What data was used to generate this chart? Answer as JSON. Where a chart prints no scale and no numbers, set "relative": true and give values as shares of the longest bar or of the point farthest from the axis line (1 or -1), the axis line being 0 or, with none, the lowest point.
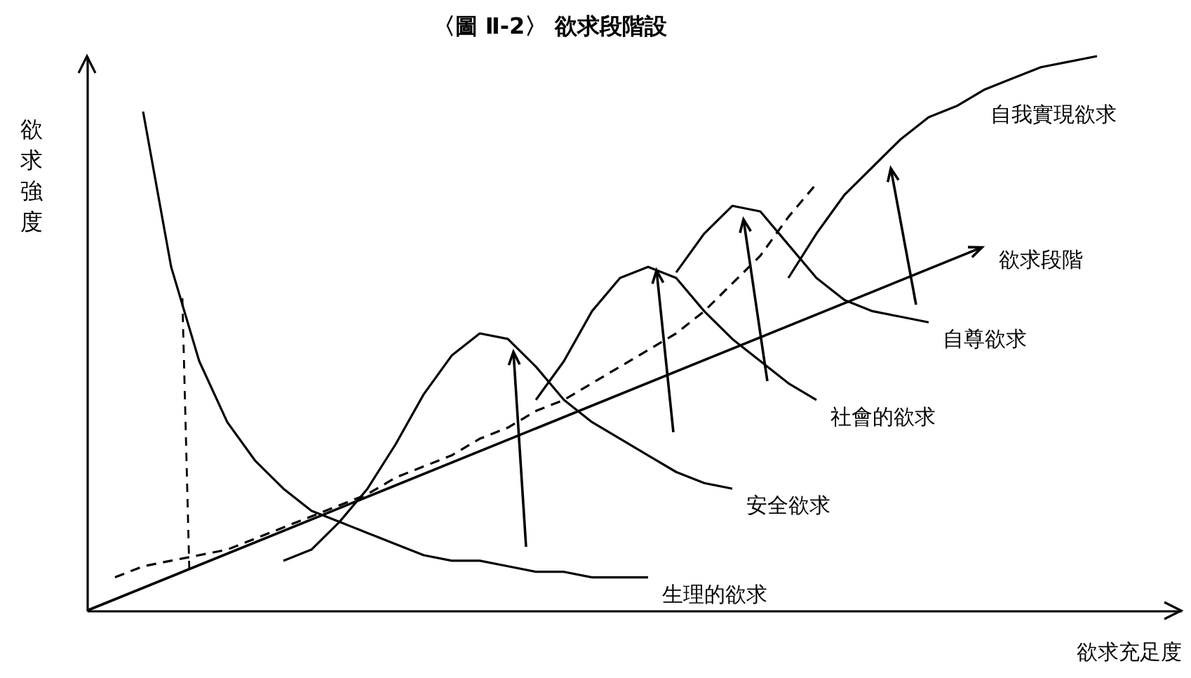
{
  "chart_data": {
    "type": "line",
    "title": "〈圖 Ⅱ-2〉 欲求段階設",
    "xlabel": "欲求充足度",
    "ylabel": "欲求強度",
    "relative": true,
    "grid": false,
    "marker": "none",
    "tick_labels": false,
    "categories": [
      null,
      null,
      null,
      null,
      null,
      null,
      null,
      null,
      null,
      null,
      null,
      null,
      null,
      null,
      null,
      null,
      null,
      null,
      null,
      null,
      null,
      null,
      null,
      null,
      null,
      null,
      null,
      null,
      null,
      null,
      null,
      null,
      null,
      null,
      null,
      null,
      null,
      null,
      null,
      null
    ],
    "series": [
      {
        "name": "生理的欲求",
        "color": "#000000",
        "values": [
          null,
          null,
          0.9,
          0.62,
          0.45,
          0.34,
          0.27,
          0.22,
          0.18,
          0.16,
          0.14,
          0.12,
          0.1,
          0.09,
          0.09,
          0.08,
          0.07,
          0.07,
          0.06,
          0.06,
          0.06,
          null,
          null,
          null,
          null,
          null,
          null,
          null,
          null,
          null,
          null,
          null,
          null,
          null,
          null,
          null,
          null,
          null,
          null,
          null
        ]
      },
      {
        "name": "安全欲求",
        "color": "#000000",
        "values": [
          null,
          null,
          null,
          null,
          null,
          null,
          null,
          0.09,
          0.11,
          0.16,
          0.22,
          0.3,
          0.39,
          0.46,
          0.5,
          0.49,
          0.44,
          0.38,
          0.34,
          0.31,
          0.28,
          0.25,
          0.23,
          0.22,
          null,
          null,
          null,
          null,
          null,
          null,
          null,
          null,
          null,
          null,
          null,
          null,
          null,
          null,
          null,
          null
        ]
      },
      {
        "name": "社會的欲求",
        "color": "#000000",
        "values": [
          null,
          null,
          null,
          null,
          null,
          null,
          null,
          null,
          null,
          null,
          null,
          null,
          null,
          null,
          null,
          null,
          0.38,
          0.45,
          0.54,
          0.6,
          0.62,
          0.6,
          0.54,
          0.49,
          0.45,
          0.41,
          0.38,
          null,
          null,
          null,
          null,
          null,
          null,
          null,
          null,
          null,
          null,
          null,
          null,
          null
        ]
      },
      {
        "name": "自尊欲求",
        "color": "#000000",
        "values": [
          null,
          null,
          null,
          null,
          null,
          null,
          null,
          null,
          null,
          null,
          null,
          null,
          null,
          null,
          null,
          null,
          null,
          null,
          null,
          null,
          null,
          0.61,
          0.68,
          0.73,
          0.72,
          0.66,
          0.6,
          0.56,
          0.54,
          0.53,
          0.52,
          null,
          null,
          null,
          null,
          null,
          null,
          null,
          null,
          null
        ]
      },
      {
        "name": "自我實現欲求",
        "color": "#000000",
        "values": [
          null,
          null,
          null,
          null,
          null,
          null,
          null,
          null,
          null,
          null,
          null,
          null,
          null,
          null,
          null,
          null,
          null,
          null,
          null,
          null,
          null,
          null,
          null,
          null,
          null,
          0.6,
          0.68,
          0.75,
          0.8,
          0.85,
          0.89,
          0.91,
          0.94,
          0.96,
          0.98,
          0.99,
          1,
          null,
          null,
          null
        ]
      },
      {
        "color": "#000000",
        "line_style": "dashed",
        "values": [
          null,
          0.06,
          0.08,
          0.09,
          0.1,
          0.11,
          0.13,
          0.15,
          0.17,
          0.19,
          0.21,
          0.24,
          0.26,
          0.28,
          0.31,
          0.33,
          0.36,
          0.38,
          0.41,
          0.44,
          0.47,
          0.5,
          0.54,
          0.59,
          0.64,
          0.71,
          0.77,
          null,
          null,
          null,
          null,
          null,
          null,
          null,
          null,
          null,
          null,
          null,
          null,
          null
        ]
      }
    ],
    "annotations": [
      "欲求段階"
    ]
  }
}
